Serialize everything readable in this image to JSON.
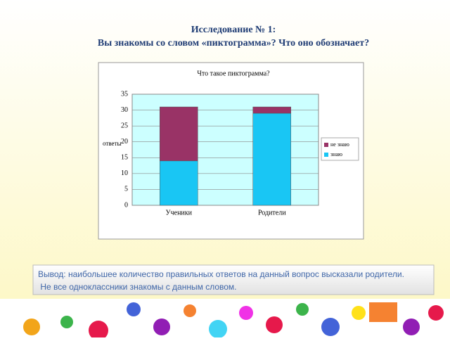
{
  "header": {
    "title_lines": [
      "Исследование № 1:",
      "Вы знакомы со словом «пиктограмма»? Что оно обозначает?"
    ]
  },
  "chart_data": {
    "type": "stacked_bar",
    "title": "Что такое пиктограмма?",
    "y_label": "ответы",
    "categories": [
      "Ученики",
      "Родители"
    ],
    "series": [
      {
        "name": "знаю",
        "color": "#19c6f4",
        "values": [
          14,
          29
        ]
      },
      {
        "name": "не знаю",
        "color": "#993366",
        "values": [
          17,
          2
        ]
      }
    ],
    "ylim": [
      0,
      35
    ],
    "yticks": [
      0,
      5,
      10,
      15,
      20,
      25,
      30,
      35
    ],
    "grid": true,
    "legend": "right"
  },
  "conclusion": {
    "lines": [
      "Вывод: наибольшее количество правильных ответов на данный вопрос высказали родители.",
      " Не все одноклассники знакомы с данным словом."
    ]
  }
}
